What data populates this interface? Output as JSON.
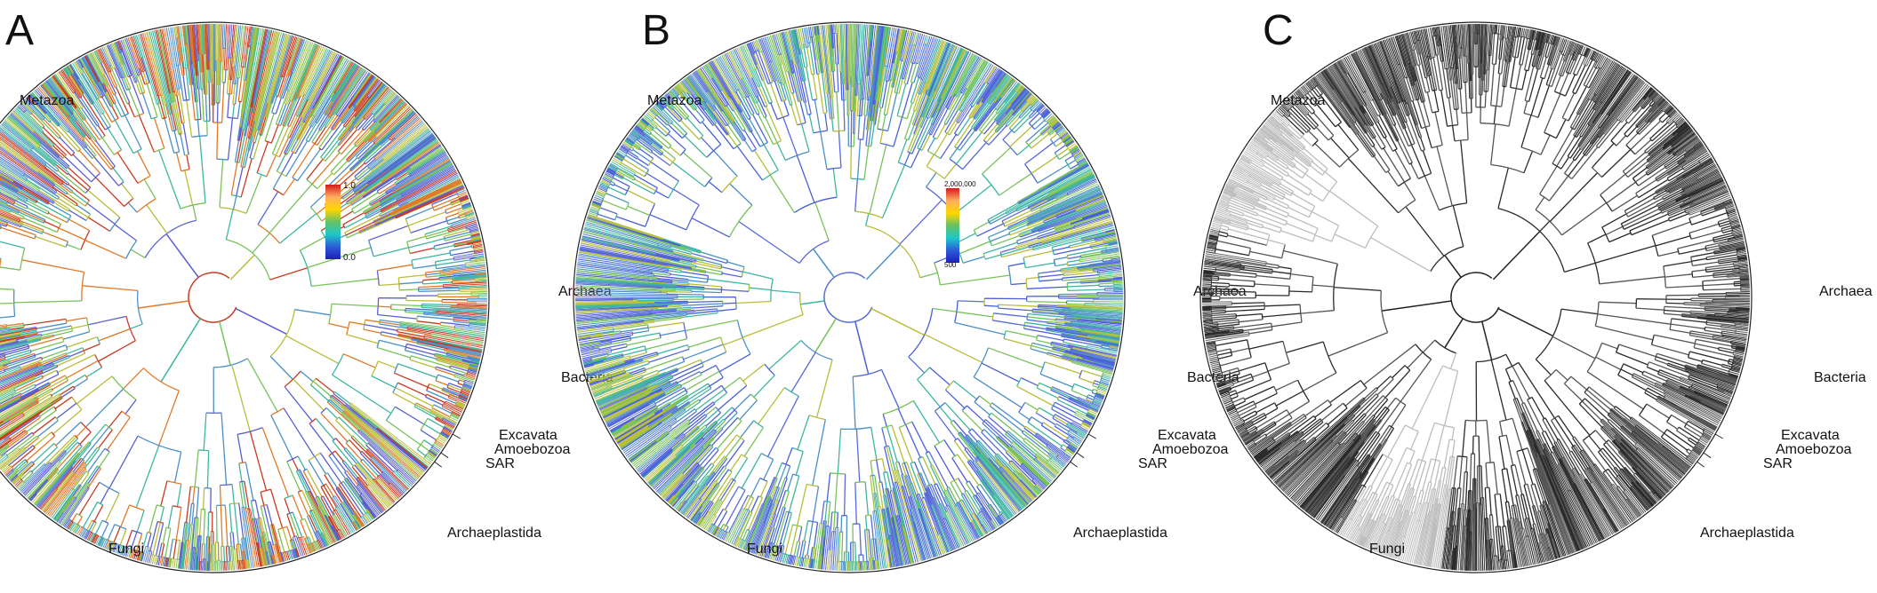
{
  "figure": {
    "panels": [
      {
        "letter": "A",
        "mode": "gradient",
        "colors": [
          "#c83a22",
          "#e07a2a",
          "#b8bd3a",
          "#78c25a",
          "#3fb6a0",
          "#4b8fc8",
          "#5a5fd0"
        ],
        "legend": {
          "max": "1.0",
          "min": "0.0",
          "ramp": [
            "#d7191c",
            "#fdae61",
            "#ffd700",
            "#66c164",
            "#1ec8c8",
            "#2b5cd8",
            "#1f1fb8"
          ]
        },
        "labels": {
          "metazoa": "Metazoa",
          "archaea": "Archaea",
          "bacteria": "Bacteria",
          "excavata": "Excavata",
          "amoebozoa": "Amoebozoa",
          "sar": "SAR",
          "archaeplastida": "Archaeplastida",
          "fungi": "Fungi"
        }
      },
      {
        "letter": "B",
        "mode": "gradient",
        "colors": [
          "#5a6ad8",
          "#4b8fc8",
          "#3fb6a0",
          "#78c25a",
          "#b8bd3a",
          "#4a5fd8"
        ],
        "legend": {
          "max": "2,000,000",
          "min": "500",
          "ramp": [
            "#d7191c",
            "#fdae61",
            "#ffd700",
            "#66c164",
            "#1ec8c8",
            "#2b5cd8",
            "#1f1fb8"
          ]
        },
        "labels": {
          "metazoa": "Metazoa",
          "archaea": "Archaea",
          "bacteria": "Bacteria",
          "excavata": "Excavata",
          "amoebozoa": "Amoebozoa",
          "sar": "SAR",
          "archaeplastida": "Archaeplastida",
          "fungi": "Fungi"
        }
      },
      {
        "letter": "C",
        "mode": "grey",
        "colors": [
          "#222222",
          "#444444",
          "#bbbbbb"
        ],
        "legend": null,
        "labels": {
          "metazoa": "Metazoa",
          "archaea": "Archaea",
          "bacteria": "Bacteria",
          "excavata": "Excavata",
          "amoebozoa": "Amoebozoa",
          "sar": "SAR",
          "archaeplastida": "Archaeplastida",
          "fungi": "Fungi"
        }
      }
    ]
  }
}
